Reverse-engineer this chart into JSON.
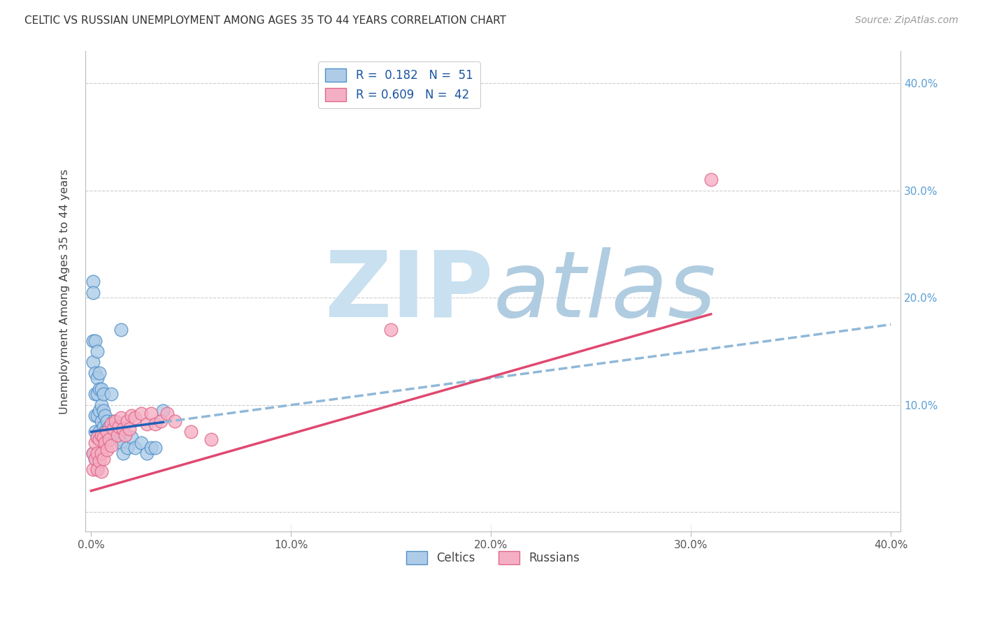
{
  "title": "CELTIC VS RUSSIAN UNEMPLOYMENT AMONG AGES 35 TO 44 YEARS CORRELATION CHART",
  "source": "Source: ZipAtlas.com",
  "ylabel": "Unemployment Among Ages 35 to 44 years",
  "xlim": [
    -0.003,
    0.405
  ],
  "ylim": [
    -0.018,
    0.43
  ],
  "celtics_color": "#aecce8",
  "russians_color": "#f5afc5",
  "celtics_edge_color": "#5090c8",
  "russians_edge_color": "#e06888",
  "trend_celtic_color": "#2060b8",
  "trend_russian_color": "#e04870",
  "trend_celtic_dash_color": "#90b8d8",
  "r_celtic": 0.182,
  "n_celtic": 51,
  "r_russian": 0.609,
  "n_russian": 42,
  "celtics_x": [
    0.001,
    0.001,
    0.001,
    0.001,
    0.002,
    0.002,
    0.002,
    0.002,
    0.002,
    0.003,
    0.003,
    0.003,
    0.003,
    0.003,
    0.004,
    0.004,
    0.004,
    0.004,
    0.005,
    0.005,
    0.005,
    0.005,
    0.006,
    0.006,
    0.006,
    0.006,
    0.007,
    0.007,
    0.008,
    0.008,
    0.009,
    0.01,
    0.01,
    0.011,
    0.012,
    0.013,
    0.014,
    0.015,
    0.016,
    0.018,
    0.02,
    0.022,
    0.025,
    0.028,
    0.03,
    0.032,
    0.001,
    0.002,
    0.003,
    0.036,
    0.015
  ],
  "celtics_y": [
    0.215,
    0.205,
    0.16,
    0.14,
    0.16,
    0.13,
    0.11,
    0.09,
    0.075,
    0.15,
    0.125,
    0.11,
    0.09,
    0.07,
    0.13,
    0.115,
    0.095,
    0.075,
    0.115,
    0.1,
    0.085,
    0.07,
    0.11,
    0.095,
    0.08,
    0.065,
    0.09,
    0.075,
    0.085,
    0.07,
    0.08,
    0.11,
    0.075,
    0.085,
    0.08,
    0.072,
    0.068,
    0.065,
    0.055,
    0.06,
    0.07,
    0.06,
    0.065,
    0.055,
    0.06,
    0.06,
    0.055,
    0.05,
    0.04,
    0.095,
    0.17
  ],
  "russians_x": [
    0.001,
    0.001,
    0.002,
    0.002,
    0.003,
    0.003,
    0.003,
    0.004,
    0.004,
    0.005,
    0.005,
    0.005,
    0.006,
    0.006,
    0.007,
    0.008,
    0.008,
    0.009,
    0.01,
    0.01,
    0.011,
    0.012,
    0.013,
    0.014,
    0.015,
    0.016,
    0.017,
    0.018,
    0.019,
    0.02,
    0.022,
    0.025,
    0.028,
    0.03,
    0.032,
    0.035,
    0.038,
    0.042,
    0.05,
    0.06,
    0.31,
    0.15
  ],
  "russians_y": [
    0.055,
    0.04,
    0.065,
    0.05,
    0.07,
    0.055,
    0.04,
    0.068,
    0.048,
    0.072,
    0.055,
    0.038,
    0.07,
    0.05,
    0.065,
    0.075,
    0.058,
    0.068,
    0.082,
    0.062,
    0.078,
    0.085,
    0.072,
    0.08,
    0.088,
    0.078,
    0.072,
    0.085,
    0.078,
    0.09,
    0.088,
    0.092,
    0.082,
    0.092,
    0.082,
    0.085,
    0.092,
    0.085,
    0.075,
    0.068,
    0.31,
    0.17
  ],
  "background_color": "#ffffff",
  "grid_color": "#cccccc",
  "legend_label_celtic": "R =  0.182   N =  51",
  "legend_label_russian": "R = 0.609   N =  42"
}
